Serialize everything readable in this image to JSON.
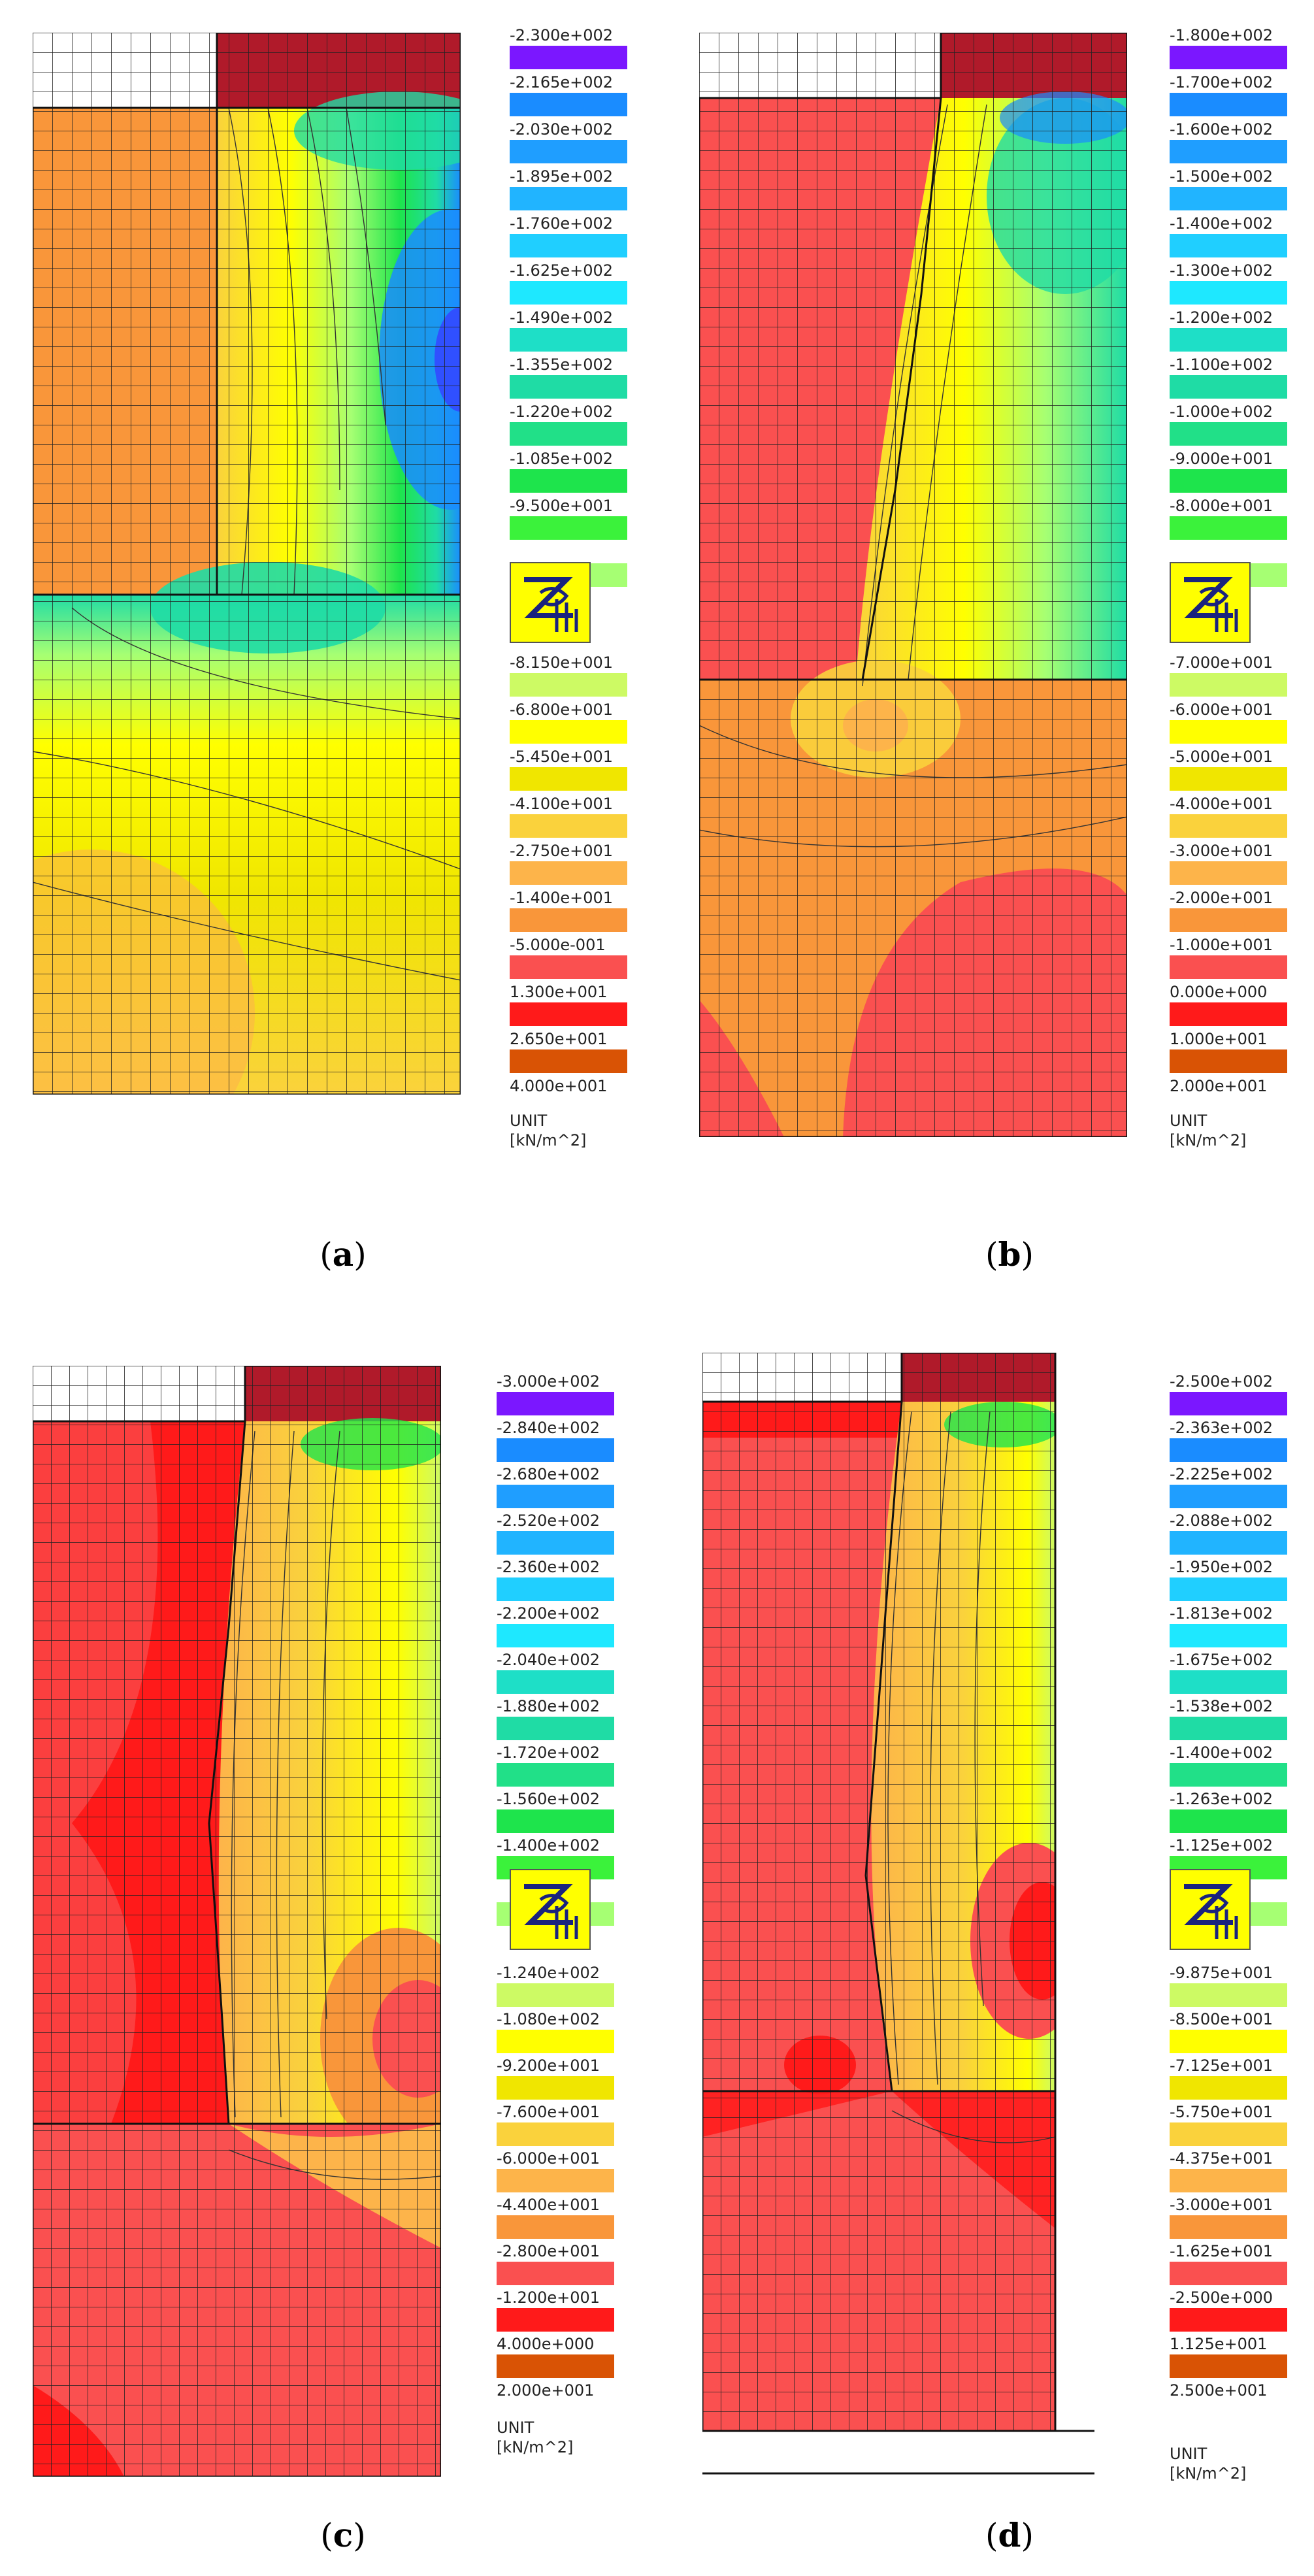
{
  "panels": [
    {
      "id": "a",
      "caption_letter": "a",
      "legend": {
        "upper": [
          {
            "label": "-2.300e+002",
            "color": "#7b17ff"
          },
          {
            "label": "-2.165e+002",
            "color": "#1a8cff"
          },
          {
            "label": "-2.030e+002",
            "color": "#1f9eff"
          },
          {
            "label": "-1.895e+002",
            "color": "#21b4ff"
          },
          {
            "label": "-1.760e+002",
            "color": "#20cfff"
          },
          {
            "label": "-1.625e+002",
            "color": "#1ee8ff"
          },
          {
            "label": "-1.490e+002",
            "color": "#1edfc7"
          },
          {
            "label": "-1.355e+002",
            "color": "#1fdca5"
          },
          {
            "label": "-1.220e+002",
            "color": "#21e088"
          },
          {
            "label": "-1.085e+002",
            "color": "#1ee44c"
          },
          {
            "label": "-9.500e+001",
            "color": "#3bf23b"
          },
          {
            "label": "",
            "color": "#a6ff73"
          }
        ],
        "lower": [
          {
            "label": "-8.150e+001",
            "color": "#cdfa64"
          },
          {
            "label": "-6.800e+001",
            "color": "#ffff00"
          },
          {
            "label": "-5.450e+001",
            "color": "#f0e600"
          },
          {
            "label": "-4.100e+001",
            "color": "#fad23c"
          },
          {
            "label": "-2.750e+001",
            "color": "#fdb44a"
          },
          {
            "label": "-1.400e+001",
            "color": "#f9963a"
          },
          {
            "label": "-5.000e-001",
            "color": "#fa5050"
          },
          {
            "label": "1.300e+001",
            "color": "#ff1a1a"
          },
          {
            "label": "2.650e+001",
            "color": "#d95305"
          },
          {
            "label": "4.000e+001",
            "color": ""
          }
        ]
      },
      "unit_title": "UNIT",
      "unit_value": "[kN/m^2]"
    },
    {
      "id": "b",
      "caption_letter": "b",
      "legend": {
        "upper": [
          {
            "label": "-1.800e+002",
            "color": "#7b17ff"
          },
          {
            "label": "-1.700e+002",
            "color": "#1a8cff"
          },
          {
            "label": "-1.600e+002",
            "color": "#1f9eff"
          },
          {
            "label": "-1.500e+002",
            "color": "#21b4ff"
          },
          {
            "label": "-1.400e+002",
            "color": "#20cfff"
          },
          {
            "label": "-1.300e+002",
            "color": "#1ee8ff"
          },
          {
            "label": "-1.200e+002",
            "color": "#1edfc7"
          },
          {
            "label": "-1.100e+002",
            "color": "#1fdca5"
          },
          {
            "label": "-1.000e+002",
            "color": "#21e088"
          },
          {
            "label": "-9.000e+001",
            "color": "#1ee44c"
          },
          {
            "label": "-8.000e+001",
            "color": "#3bf23b"
          },
          {
            "label": "",
            "color": "#a6ff73"
          }
        ],
        "lower": [
          {
            "label": "-7.000e+001",
            "color": "#cdfa64"
          },
          {
            "label": "-6.000e+001",
            "color": "#ffff00"
          },
          {
            "label": "-5.000e+001",
            "color": "#f0e600"
          },
          {
            "label": "-4.000e+001",
            "color": "#fad23c"
          },
          {
            "label": "-3.000e+001",
            "color": "#fdb44a"
          },
          {
            "label": "-2.000e+001",
            "color": "#f9963a"
          },
          {
            "label": "-1.000e+001",
            "color": "#fa5050"
          },
          {
            "label": "0.000e+000",
            "color": "#ff1a1a"
          },
          {
            "label": "1.000e+001",
            "color": "#d95305"
          },
          {
            "label": "2.000e+001",
            "color": ""
          }
        ]
      },
      "unit_title": "UNIT",
      "unit_value": "[kN/m^2]"
    },
    {
      "id": "c",
      "caption_letter": "c",
      "legend": {
        "upper": [
          {
            "label": "-3.000e+002",
            "color": "#7b17ff"
          },
          {
            "label": "-2.840e+002",
            "color": "#1a8cff"
          },
          {
            "label": "-2.680e+002",
            "color": "#1f9eff"
          },
          {
            "label": "-2.520e+002",
            "color": "#21b4ff"
          },
          {
            "label": "-2.360e+002",
            "color": "#20cfff"
          },
          {
            "label": "-2.200e+002",
            "color": "#1ee8ff"
          },
          {
            "label": "-2.040e+002",
            "color": "#1edfc7"
          },
          {
            "label": "-1.880e+002",
            "color": "#1fdca5"
          },
          {
            "label": "-1.720e+002",
            "color": "#21e088"
          },
          {
            "label": "-1.560e+002",
            "color": "#1ee44c"
          },
          {
            "label": "-1.400e+002",
            "color": "#3bf23b"
          },
          {
            "label": "",
            "color": "#a6ff73"
          }
        ],
        "lower": [
          {
            "label": "-1.240e+002",
            "color": "#cdfa64"
          },
          {
            "label": "-1.080e+002",
            "color": "#ffff00"
          },
          {
            "label": "-9.200e+001",
            "color": "#f0e600"
          },
          {
            "label": "-7.600e+001",
            "color": "#fad23c"
          },
          {
            "label": "-6.000e+001",
            "color": "#fdb44a"
          },
          {
            "label": "-4.400e+001",
            "color": "#f9963a"
          },
          {
            "label": "-2.800e+001",
            "color": "#fa5050"
          },
          {
            "label": "-1.200e+001",
            "color": "#ff1a1a"
          },
          {
            "label": "4.000e+000",
            "color": "#d95305"
          },
          {
            "label": "2.000e+001",
            "color": ""
          }
        ]
      },
      "unit_title": "UNIT",
      "unit_value": "[kN/m^2]"
    },
    {
      "id": "d",
      "caption_letter": "d",
      "legend": {
        "upper": [
          {
            "label": "-2.500e+002",
            "color": "#7b17ff"
          },
          {
            "label": "-2.363e+002",
            "color": "#1a8cff"
          },
          {
            "label": "-2.225e+002",
            "color": "#1f9eff"
          },
          {
            "label": "-2.088e+002",
            "color": "#21b4ff"
          },
          {
            "label": "-1.950e+002",
            "color": "#20cfff"
          },
          {
            "label": "-1.813e+002",
            "color": "#1ee8ff"
          },
          {
            "label": "-1.675e+002",
            "color": "#1edfc7"
          },
          {
            "label": "-1.538e+002",
            "color": "#1fdca5"
          },
          {
            "label": "-1.400e+002",
            "color": "#21e088"
          },
          {
            "label": "-1.263e+002",
            "color": "#1ee44c"
          },
          {
            "label": "-1.125e+002",
            "color": "#3bf23b"
          },
          {
            "label": "",
            "color": "#a6ff73"
          }
        ],
        "lower": [
          {
            "label": "-9.875e+001",
            "color": "#cdfa64"
          },
          {
            "label": "-8.500e+001",
            "color": "#ffff00"
          },
          {
            "label": "-7.125e+001",
            "color": "#f0e600"
          },
          {
            "label": "-5.750e+001",
            "color": "#fad23c"
          },
          {
            "label": "-4.375e+001",
            "color": "#fdb44a"
          },
          {
            "label": "-3.000e+001",
            "color": "#f9963a"
          },
          {
            "label": "-1.625e+001",
            "color": "#fa5050"
          },
          {
            "label": "-2.500e+000",
            "color": "#ff1a1a"
          },
          {
            "label": "1.125e+001",
            "color": "#d95305"
          },
          {
            "label": "2.500e+001",
            "color": ""
          }
        ]
      },
      "unit_title": "UNIT",
      "unit_value": "[kN/m^2]"
    }
  ],
  "logo_text": "ZSoil"
}
